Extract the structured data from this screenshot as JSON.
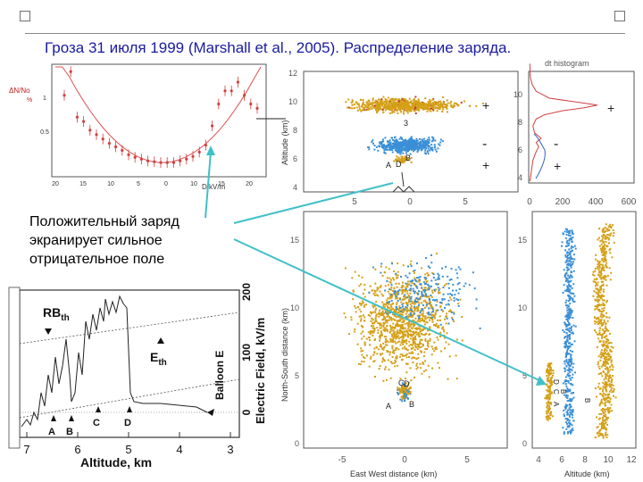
{
  "slide": {
    "title": "Гроза 31 июля 1999 (Marshall et al., 2005). Распределение заряда.",
    "caption_lines": [
      "Положительный заряд",
      "экранирует сильное",
      "отрицательное поле"
    ]
  },
  "colors": {
    "title": "#1a1aa0",
    "positive_charge": "#d4a017",
    "negative_charge": "#3a8fd6",
    "arrow": "#40c0c8",
    "fit_curve": "#e05050",
    "field_curve": "#222222"
  },
  "profile_plot": {
    "ylabel": "ΔN/No",
    "ylabel_unit": "%",
    "xlabel": "D kV/m",
    "x_ticks": [
      "20",
      "15",
      "10",
      "5",
      "0",
      "10",
      "15",
      "20"
    ],
    "y_ticks": [
      "1",
      "0.5"
    ],
    "x": [
      18,
      16,
      14,
      13,
      12,
      11,
      10,
      9,
      8,
      7,
      6,
      5,
      4,
      3,
      2,
      1,
      0,
      1,
      2,
      3,
      4,
      5,
      6,
      7,
      8,
      9,
      10,
      11,
      12,
      13,
      14
    ],
    "y": [
      0.85,
      1.12,
      0.6,
      0.55,
      0.45,
      0.4,
      0.35,
      0.3,
      0.26,
      0.22,
      0.17,
      0.14,
      0.12,
      0.1,
      0.09,
      0.08,
      0.08,
      0.08,
      0.1,
      0.12,
      0.15,
      0.2,
      0.28,
      0.5,
      0.75,
      0.9,
      0.9,
      1.0,
      0.85,
      0.75,
      0.7
    ]
  },
  "altitude_view": {
    "ylabel": "Altitude (km)",
    "y_ticks": [
      "12",
      "10",
      "8",
      "6",
      "4"
    ],
    "x_ticks": [
      "5",
      "0",
      "5"
    ],
    "signs": [
      "+",
      "-",
      "+"
    ],
    "point_labels": [
      "3",
      "B",
      "A",
      "D"
    ]
  },
  "histogram": {
    "label": "dt histogram",
    "y_ticks": [
      "10",
      "8",
      "6",
      "4"
    ],
    "x_ticks": [
      "0",
      "200",
      "400",
      "600"
    ],
    "signs": [
      "+",
      "-",
      "+"
    ],
    "curve_alt": [
      3.5,
      4,
      5,
      5.5,
      6,
      6.3,
      6.6,
      7,
      7.5,
      8,
      8.3,
      8.6,
      8.8,
      9.0,
      9.2,
      9.5,
      10,
      10.5,
      11,
      12
    ],
    "curve_count": [
      2,
      8,
      20,
      35,
      55,
      40,
      70,
      30,
      20,
      40,
      90,
      200,
      330,
      410,
      300,
      120,
      40,
      15,
      5,
      1
    ]
  },
  "plan_view": {
    "ylabel": "North-South distance (km)",
    "xlabel": "East West distance (km)",
    "y_ticks": [
      "15",
      "10",
      "5",
      "0"
    ],
    "x_ticks": [
      "-5",
      "0",
      "5"
    ],
    "point_labels": [
      "A",
      "C",
      "D",
      "B"
    ]
  },
  "side_view": {
    "xlabel": "Altitude (km)",
    "y_ticks": [
      "15",
      "10",
      "5",
      "0"
    ],
    "x_ticks": [
      "4",
      "6",
      "8",
      "10",
      "12"
    ],
    "point_labels": [
      "D",
      "C",
      "A",
      "B",
      "B"
    ]
  },
  "balloon_plot": {
    "xlabel": "Altitude, km",
    "ylabel": "Electric Field, kV/m",
    "y_ticks": [
      "200",
      "100",
      "0"
    ],
    "x_ticks": [
      "7",
      "6",
      "5",
      "4",
      "3"
    ],
    "labels": {
      "rb": "RB",
      "rb_sub": "th",
      "eth": "E",
      "eth_sub": "th",
      "balloon": "Balloon E"
    },
    "markers": [
      "A",
      "B",
      "C",
      "D"
    ]
  }
}
